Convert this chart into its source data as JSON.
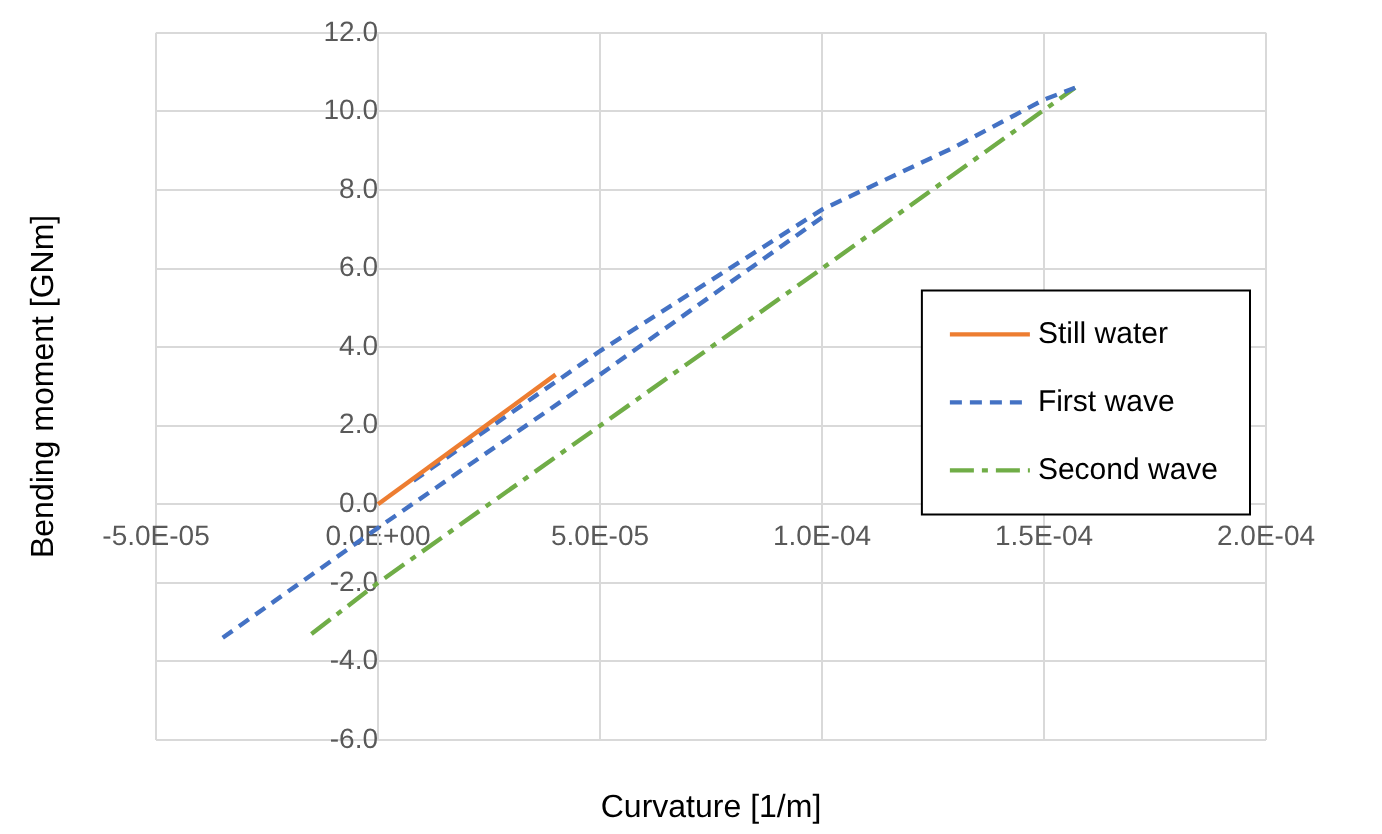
{
  "chart_data": {
    "type": "line",
    "xlabel": "Curvature [1/m]",
    "ylabel": "Bending moment [GNm]",
    "xlim": [
      -5e-05,
      0.0002
    ],
    "xticks": [
      {
        "value": -5e-05,
        "label": "-5.0E-05"
      },
      {
        "value": 0,
        "label": "0.0E+00"
      },
      {
        "value": 5e-05,
        "label": "5.0E-05"
      },
      {
        "value": 0.0001,
        "label": "1.0E-04"
      },
      {
        "value": 0.00015,
        "label": "1.5E-04"
      },
      {
        "value": 0.0002,
        "label": "2.0E-04"
      }
    ],
    "ylim": [
      -6,
      12
    ],
    "yticks": [
      {
        "value": -6,
        "label": "-6.0"
      },
      {
        "value": -4,
        "label": "-4.0"
      },
      {
        "value": -2,
        "label": "-2.0"
      },
      {
        "value": 0,
        "label": "0.0"
      },
      {
        "value": 2,
        "label": "2.0"
      },
      {
        "value": 4,
        "label": "4.0"
      },
      {
        "value": 6,
        "label": "6.0"
      },
      {
        "value": 8,
        "label": "8.0"
      },
      {
        "value": 10,
        "label": "10.0"
      },
      {
        "value": 12,
        "label": "12.0"
      }
    ],
    "grid": true,
    "legend": "right",
    "marker": "none",
    "series": [
      {
        "name": "Still water",
        "color": "#ed7d31",
        "line_style": "solid",
        "x": [
          0,
          4e-05
        ],
        "values": [
          0,
          3.3
        ]
      },
      {
        "name": "First wave",
        "color": "#4472c4",
        "line_style": "dashed",
        "x": [
          8e-06,
          5e-05,
          0.0001,
          0.00013,
          0.00015,
          0.000157,
          0.00015,
          0.0001,
          5e-05,
          0,
          -3.5e-05
        ],
        "values": [
          0.6,
          3.9,
          7.5,
          9.1,
          10.3,
          10.6,
          null,
          7.3,
          3.3,
          -0.6,
          -3.4
        ]
      },
      {
        "name": "Second wave",
        "color": "#70ad47",
        "line_style": "dashdot",
        "x": [
          -1.5e-05,
          0,
          5e-05,
          0.0001,
          0.000157
        ],
        "values": [
          -3.3,
          -2.0,
          2.0,
          6.0,
          10.6
        ]
      }
    ]
  }
}
